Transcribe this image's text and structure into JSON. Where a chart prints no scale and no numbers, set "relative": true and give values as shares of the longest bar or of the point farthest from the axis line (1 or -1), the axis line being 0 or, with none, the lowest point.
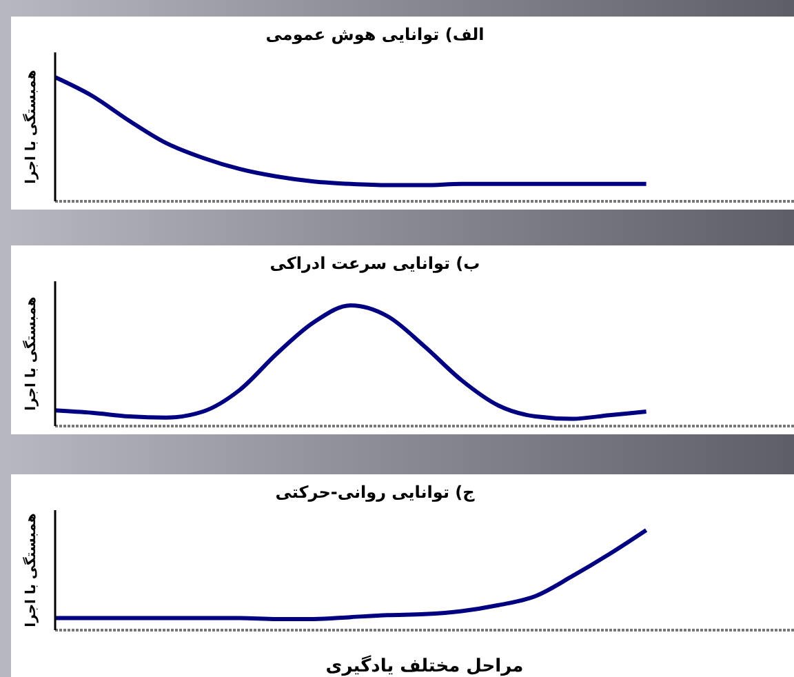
{
  "chart_data": [
    {
      "type": "line",
      "title": "الف) توانایی هوش عمومی",
      "ylabel": "همبستگی با اجرا",
      "relative": true,
      "categories": [
        null,
        null,
        null,
        null,
        null,
        null,
        null,
        null,
        null,
        null,
        null,
        null,
        null,
        null,
        null,
        null,
        null,
        null,
        null,
        null,
        null
      ],
      "series": [
        {
          "color": "#000080",
          "values": [
            1,
            0.85,
            0.65,
            0.47,
            0.35,
            0.26,
            0.2,
            0.16,
            0.14,
            0.13,
            0.13,
            0.14,
            0.14,
            0.14,
            0.14,
            0.14,
            0.14,
            null,
            null,
            null,
            null
          ]
        }
      ],
      "grid": false,
      "legend": false,
      "marker": "none",
      "line_style": "solid"
    },
    {
      "type": "line",
      "title": "ب) توانایی سرعت ادراکی",
      "ylabel": "همبستگی با اجرا",
      "relative": true,
      "categories": [
        null,
        null,
        null,
        null,
        null,
        null,
        null,
        null,
        null,
        null,
        null,
        null,
        null,
        null,
        null,
        null,
        null,
        null,
        null,
        null,
        null
      ],
      "series": [
        {
          "color": "#000080",
          "values": [
            0.13,
            0.11,
            0.08,
            0.07,
            0.12,
            0.3,
            0.6,
            0.86,
            1,
            0.91,
            0.66,
            0.38,
            0.17,
            0.08,
            0.06,
            0.09,
            0.12,
            null,
            null,
            null,
            null
          ]
        }
      ],
      "grid": false,
      "legend": false,
      "marker": "none",
      "line_style": "solid"
    },
    {
      "type": "line",
      "title": "ج) توانایی روانی-حرکتی",
      "ylabel": "همبستگی با اجرا",
      "xlabel": "مراحل مختلف یادگیری",
      "relative": true,
      "categories": [
        null,
        null,
        null,
        null,
        null,
        null,
        null,
        null,
        null,
        null,
        null,
        null,
        null,
        null,
        null,
        null,
        null,
        null,
        null,
        null,
        null
      ],
      "series": [
        {
          "color": "#000080",
          "values": [
            0.12,
            0.12,
            0.12,
            0.12,
            0.12,
            0.12,
            0.11,
            0.11,
            0.13,
            0.15,
            0.16,
            0.19,
            0.25,
            0.34,
            0.54,
            0.76,
            1,
            null,
            null,
            null,
            null
          ]
        }
      ],
      "grid": false,
      "legend": false,
      "marker": "none",
      "line_style": "solid"
    }
  ]
}
